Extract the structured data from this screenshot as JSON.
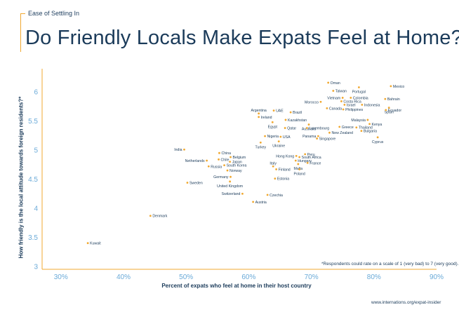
{
  "header": {
    "kicker": "Ease of Settling In",
    "title": "Do Friendly Locals Make Expats Feel at Home?"
  },
  "footnote": "*Respondents could rate on a scale of 1 (very bad) to 7 (very good).",
  "source": "www.internations.org/expat-insider",
  "colors": {
    "accent": "#f0a830",
    "title": "#1b3b5a",
    "tick": "#6aaad8",
    "dot": "#f0a830"
  },
  "chart_data": {
    "type": "scatter",
    "title": "Do Friendly Locals Make Expats Feel at Home?",
    "xlabel": "Percent of expats who feel at home in their host country",
    "ylabel": "How friendly is the local attitude towards foreign residents?*",
    "xlim": [
      27,
      90
    ],
    "ylim": [
      2.95,
      6.4
    ],
    "xticks": [
      30,
      40,
      50,
      60,
      70,
      80,
      90
    ],
    "xtick_labels": [
      "30%",
      "40%",
      "50%",
      "60%",
      "70%",
      "80%",
      "90%"
    ],
    "yticks": [
      3,
      3.5,
      4,
      4.5,
      5,
      5.5,
      6
    ],
    "ytick_labels": [
      "3",
      "3.5",
      "4",
      "4.5",
      "5",
      "5.5",
      "6"
    ],
    "grid": false,
    "points": [
      {
        "label": "Oman",
        "x": 72.7,
        "y": 6.16,
        "pos": "right"
      },
      {
        "label": "Mexico",
        "x": 82.7,
        "y": 6.1,
        "pos": "right"
      },
      {
        "label": "Portugal",
        "x": 77.6,
        "y": 6.08,
        "pos": "below"
      },
      {
        "label": "Taiwan",
        "x": 73.5,
        "y": 6.02,
        "pos": "right"
      },
      {
        "label": "Vietnam",
        "x": 75.0,
        "y": 5.9,
        "pos": "left"
      },
      {
        "label": "Colombia",
        "x": 76.3,
        "y": 5.9,
        "pos": "right"
      },
      {
        "label": "Bahrain",
        "x": 81.8,
        "y": 5.88,
        "pos": "right"
      },
      {
        "label": "Costa Rica",
        "x": 74.8,
        "y": 5.84,
        "pos": "right"
      },
      {
        "label": "Morocco",
        "x": 71.5,
        "y": 5.83,
        "pos": "left"
      },
      {
        "label": "Israel",
        "x": 75.3,
        "y": 5.78,
        "pos": "right"
      },
      {
        "label": "Indonesia",
        "x": 78.1,
        "y": 5.78,
        "pos": "right"
      },
      {
        "label": "Spain",
        "x": 82.4,
        "y": 5.73,
        "pos": "below"
      },
      {
        "label": "Canada",
        "x": 72.5,
        "y": 5.72,
        "pos": "right"
      },
      {
        "label": "Philippines",
        "x": 75.1,
        "y": 5.7,
        "pos": "right"
      },
      {
        "label": "Ecuador",
        "x": 81.9,
        "y": 5.69,
        "pos": "right"
      },
      {
        "label": "UAE",
        "x": 64.0,
        "y": 5.68,
        "pos": "right"
      },
      {
        "label": "Brazil",
        "x": 66.7,
        "y": 5.65,
        "pos": "right"
      },
      {
        "label": "Argentina",
        "x": 61.6,
        "y": 5.63,
        "pos": "above"
      },
      {
        "label": "Ireland",
        "x": 61.6,
        "y": 5.57,
        "pos": "right"
      },
      {
        "label": "Kazakhstan",
        "x": 65.9,
        "y": 5.52,
        "pos": "right"
      },
      {
        "label": "Malaysia",
        "x": 79.0,
        "y": 5.52,
        "pos": "left"
      },
      {
        "label": "Egypt",
        "x": 63.8,
        "y": 5.48,
        "pos": "below"
      },
      {
        "label": "Australia",
        "x": 69.6,
        "y": 5.44,
        "pos": "below"
      },
      {
        "label": "Kenya",
        "x": 79.3,
        "y": 5.45,
        "pos": "right"
      },
      {
        "label": "Greece",
        "x": 74.5,
        "y": 5.4,
        "pos": "right"
      },
      {
        "label": "Thailand",
        "x": 77.2,
        "y": 5.39,
        "pos": "right"
      },
      {
        "label": "Luxembourg",
        "x": 69.3,
        "y": 5.38,
        "pos": "right"
      },
      {
        "label": "Qatar",
        "x": 65.8,
        "y": 5.38,
        "pos": "right"
      },
      {
        "label": "Bulgaria",
        "x": 78.0,
        "y": 5.33,
        "pos": "right"
      },
      {
        "label": "New Zealand",
        "x": 72.9,
        "y": 5.3,
        "pos": "right"
      },
      {
        "label": "Panama",
        "x": 71.1,
        "y": 5.24,
        "pos": "left"
      },
      {
        "label": "Nigeria",
        "x": 62.6,
        "y": 5.24,
        "pos": "right"
      },
      {
        "label": "USA",
        "x": 65.1,
        "y": 5.23,
        "pos": "right"
      },
      {
        "label": "Cyprus",
        "x": 80.6,
        "y": 5.22,
        "pos": "below"
      },
      {
        "label": "Singapore",
        "x": 70.9,
        "y": 5.2,
        "pos": "right"
      },
      {
        "label": "Turkey",
        "x": 61.9,
        "y": 5.13,
        "pos": "below"
      },
      {
        "label": "Ukraine",
        "x": 64.8,
        "y": 5.15,
        "pos": "below"
      },
      {
        "label": "India",
        "x": 49.7,
        "y": 5.01,
        "pos": "left"
      },
      {
        "label": "China",
        "x": 55.3,
        "y": 4.95,
        "pos": "right"
      },
      {
        "label": "Peru",
        "x": 69.0,
        "y": 4.93,
        "pos": "right"
      },
      {
        "label": "Hong Kong",
        "x": 67.6,
        "y": 4.9,
        "pos": "left"
      },
      {
        "label": "Belgium",
        "x": 57.1,
        "y": 4.88,
        "pos": "right"
      },
      {
        "label": "South Africa",
        "x": 68.1,
        "y": 4.88,
        "pos": "right"
      },
      {
        "label": "Chile",
        "x": 55.2,
        "y": 4.84,
        "pos": "right"
      },
      {
        "label": "Netherlands",
        "x": 53.3,
        "y": 4.82,
        "pos": "left"
      },
      {
        "label": "Hungary",
        "x": 67.5,
        "y": 4.82,
        "pos": "right"
      },
      {
        "label": "Japan",
        "x": 57.0,
        "y": 4.8,
        "pos": "right"
      },
      {
        "label": "France",
        "x": 69.4,
        "y": 4.78,
        "pos": "right"
      },
      {
        "label": "Malta",
        "x": 67.9,
        "y": 4.76,
        "pos": "below"
      },
      {
        "label": "South Korea",
        "x": 56.1,
        "y": 4.74,
        "pos": "right"
      },
      {
        "label": "Russia",
        "x": 53.6,
        "y": 4.72,
        "pos": "right"
      },
      {
        "label": "Italy",
        "x": 63.9,
        "y": 4.72,
        "pos": "above"
      },
      {
        "label": "Finland",
        "x": 64.4,
        "y": 4.67,
        "pos": "right"
      },
      {
        "label": "Norway",
        "x": 56.6,
        "y": 4.65,
        "pos": "right"
      },
      {
        "label": "Poland",
        "x": 68.1,
        "y": 4.67,
        "pos": "below"
      },
      {
        "label": "Germany",
        "x": 57.1,
        "y": 4.54,
        "pos": "left"
      },
      {
        "label": "Estonia",
        "x": 64.2,
        "y": 4.51,
        "pos": "right"
      },
      {
        "label": "United Kingdom",
        "x": 57.0,
        "y": 4.46,
        "pos": "below"
      },
      {
        "label": "Sweden",
        "x": 50.2,
        "y": 4.44,
        "pos": "right"
      },
      {
        "label": "Switzerland",
        "x": 59.0,
        "y": 4.25,
        "pos": "left"
      },
      {
        "label": "Czechia",
        "x": 63.0,
        "y": 4.23,
        "pos": "right"
      },
      {
        "label": "Austria",
        "x": 60.7,
        "y": 4.11,
        "pos": "right"
      },
      {
        "label": "Denmark",
        "x": 44.3,
        "y": 3.87,
        "pos": "right"
      },
      {
        "label": "Kuwait",
        "x": 34.3,
        "y": 3.4,
        "pos": "right"
      }
    ]
  }
}
